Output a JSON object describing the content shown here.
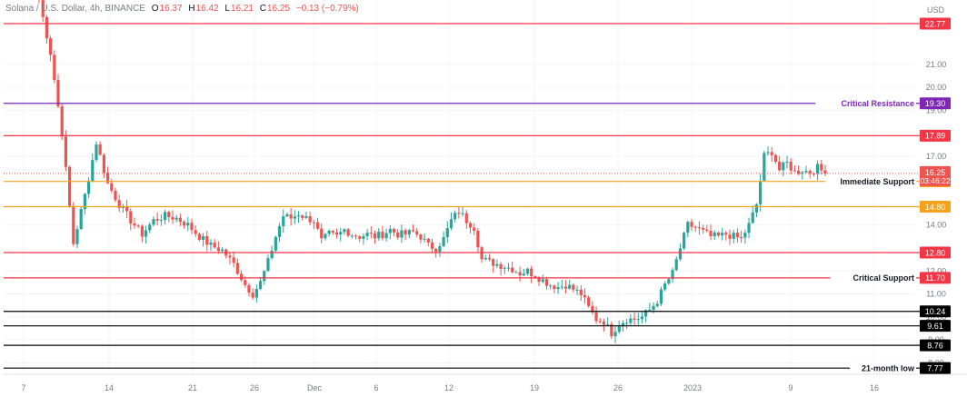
{
  "header": {
    "symbol": "Solana / U.S. Dollar, 4h, BINANCE",
    "open_label": "O",
    "open": "16.37",
    "high_label": "H",
    "high": "16.42",
    "low_label": "L",
    "low": "16.21",
    "close_label": "C",
    "close": "16.25",
    "change": "−0.13 (−0.79%)",
    "currency": "USD"
  },
  "colors": {
    "up": "#26a69a",
    "down": "#ef5350",
    "red_line": "#f23645",
    "orange_line": "#f7a21b",
    "purple_line": "#7e26b6",
    "black_line": "#000000",
    "axis_text": "#787b86"
  },
  "chart_data": {
    "type": "candlestick",
    "timeframe": "4h",
    "y_axis": {
      "min": 7.5,
      "max": 23.8,
      "ticks": [
        "21.00",
        "20.00",
        "19.00",
        "17.00",
        "14.00",
        "12.00",
        "11.00",
        "10.00",
        "9.00",
        "8.00"
      ]
    },
    "x_axis": {
      "ticks": [
        "7",
        "14",
        "21",
        "26",
        "Dec",
        "6",
        "12",
        "19",
        "26",
        "2023",
        "9",
        "16"
      ]
    },
    "price_path": [
      [
        0,
        23.8
      ],
      [
        3,
        21.5
      ],
      [
        6,
        18.0
      ],
      [
        9,
        13.2
      ],
      [
        12,
        15.3
      ],
      [
        15,
        17.6
      ],
      [
        18,
        15.8
      ],
      [
        21,
        14.9
      ],
      [
        24,
        14.2
      ],
      [
        27,
        13.6
      ],
      [
        30,
        14.2
      ],
      [
        33,
        14.4
      ],
      [
        36,
        14.3
      ],
      [
        39,
        14.0
      ],
      [
        42,
        13.5
      ],
      [
        45,
        13.1
      ],
      [
        48,
        12.9
      ],
      [
        51,
        12.3
      ],
      [
        54,
        11.4
      ],
      [
        56,
        11.0
      ],
      [
        58,
        11.5
      ],
      [
        60,
        12.4
      ],
      [
        62,
        13.5
      ],
      [
        64,
        14.4
      ],
      [
        66,
        14.3
      ],
      [
        68,
        14.5
      ],
      [
        70,
        14.3
      ],
      [
        72,
        14.2
      ],
      [
        74,
        13.3
      ],
      [
        76,
        13.6
      ],
      [
        78,
        13.5
      ],
      [
        80,
        13.8
      ],
      [
        82,
        13.6
      ],
      [
        84,
        13.5
      ],
      [
        86,
        13.6
      ],
      [
        88,
        13.5
      ],
      [
        90,
        13.6
      ],
      [
        92,
        13.8
      ],
      [
        94,
        13.6
      ],
      [
        96,
        13.6
      ],
      [
        98,
        13.7
      ],
      [
        100,
        13.5
      ],
      [
        102,
        13.1
      ],
      [
        104,
        13.0
      ],
      [
        106,
        13.4
      ],
      [
        108,
        14.2
      ],
      [
        110,
        14.6
      ],
      [
        112,
        14.2
      ],
      [
        114,
        13.9
      ],
      [
        116,
        12.5
      ],
      [
        118,
        12.4
      ],
      [
        120,
        12.3
      ],
      [
        122,
        12.2
      ],
      [
        124,
        12.1
      ],
      [
        126,
        11.9
      ],
      [
        128,
        12.0
      ],
      [
        130,
        11.8
      ],
      [
        132,
        11.6
      ],
      [
        134,
        11.4
      ],
      [
        136,
        11.3
      ],
      [
        138,
        11.4
      ],
      [
        140,
        11.2
      ],
      [
        142,
        11.0
      ],
      [
        144,
        10.4
      ],
      [
        146,
        9.9
      ],
      [
        148,
        9.8
      ],
      [
        150,
        9.3
      ],
      [
        152,
        9.7
      ],
      [
        154,
        9.9
      ],
      [
        156,
        9.9
      ],
      [
        158,
        10.0
      ],
      [
        160,
        10.3
      ],
      [
        162,
        10.7
      ],
      [
        164,
        11.4
      ],
      [
        166,
        11.9
      ],
      [
        168,
        13.0
      ],
      [
        170,
        14.0
      ],
      [
        172,
        13.9
      ],
      [
        174,
        13.7
      ],
      [
        176,
        13.5
      ],
      [
        178,
        13.5
      ],
      [
        180,
        13.6
      ],
      [
        182,
        13.5
      ],
      [
        184,
        13.4
      ],
      [
        186,
        14.0
      ],
      [
        188,
        14.9
      ],
      [
        190,
        17.0
      ],
      [
        192,
        17.2
      ],
      [
        194,
        16.4
      ],
      [
        196,
        16.7
      ],
      [
        198,
        16.3
      ],
      [
        200,
        16.4
      ],
      [
        202,
        16.3
      ],
      [
        204,
        16.5
      ],
      [
        206,
        16.25
      ]
    ],
    "price_lines": [
      {
        "price": 22.77,
        "label": "22.77",
        "color": "red",
        "annotation": ""
      },
      {
        "price": 19.3,
        "label": "19.30",
        "color": "purple",
        "annotation": "Critical Resistance"
      },
      {
        "price": 17.89,
        "label": "17.89",
        "color": "red",
        "annotation": ""
      },
      {
        "price": 15.9,
        "label": "15.90",
        "color": "orange",
        "annotation": "Immediate Support"
      },
      {
        "price": 14.8,
        "label": "14.80",
        "color": "orange",
        "annotation": ""
      },
      {
        "price": 12.8,
        "label": "12.80",
        "color": "red",
        "annotation": ""
      },
      {
        "price": 11.7,
        "label": "11.70",
        "color": "red",
        "annotation": "Critical Support"
      },
      {
        "price": 10.24,
        "label": "10.24",
        "color": "black",
        "annotation": ""
      },
      {
        "price": 9.61,
        "label": "9.61",
        "color": "black",
        "annotation": ""
      },
      {
        "price": 8.76,
        "label": "8.76",
        "color": "black",
        "annotation": ""
      },
      {
        "price": 7.77,
        "label": "7.77",
        "color": "black",
        "annotation": "21-month low"
      }
    ],
    "last_price": {
      "label": "16.25",
      "countdown": "03:46:22",
      "price": 16.25
    }
  }
}
